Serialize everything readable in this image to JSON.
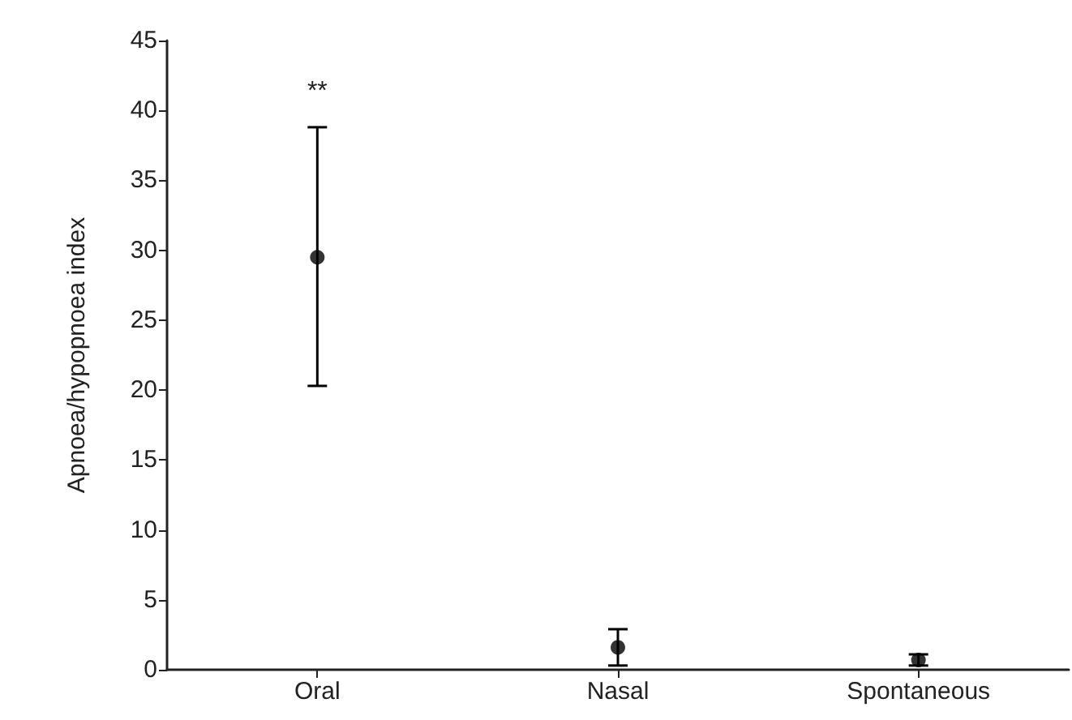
{
  "chart_data": {
    "type": "scatter",
    "ylabel": "Apnoea/hypopnoea index",
    "categories": [
      "Oral",
      "Nasal",
      "Spontaneous"
    ],
    "values": [
      29.5,
      1.6,
      0.7
    ],
    "errors": [
      [
        20.3,
        38.8
      ],
      [
        0.3,
        2.9
      ],
      [
        0.3,
        1.1
      ]
    ],
    "color": "#000000",
    "marker": "circle",
    "grid": false,
    "ylim": [
      0,
      45
    ],
    "yticks": [
      0,
      5,
      10,
      15,
      20,
      25,
      30,
      35,
      40,
      45
    ],
    "annotations": [
      "**"
    ]
  }
}
